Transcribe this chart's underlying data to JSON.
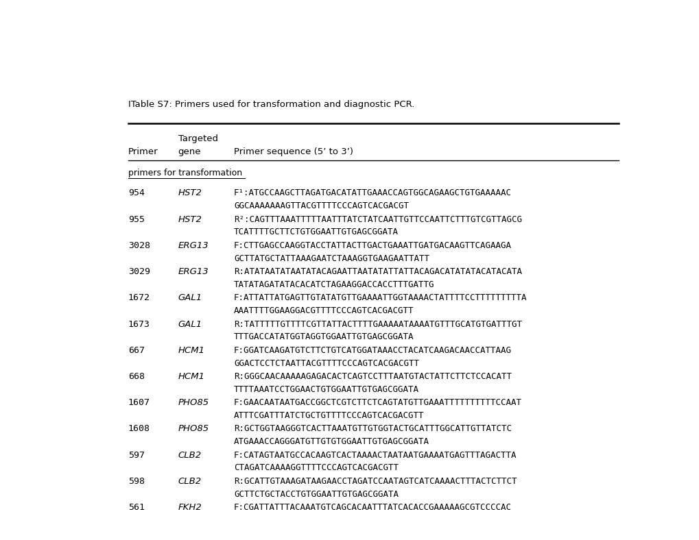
{
  "title": "ITable S7: Primers used for transformation and diagnostic PCR.",
  "background_color": "#ffffff",
  "section_label": "primers for transformation",
  "rows": [
    {
      "primer": "954",
      "gene": "HST2",
      "sequence_line1": "F¹:ATGCCAAGCTTAGATGACATATTGAAACCAGTGGCAGAAGCTGTGAAAAAC",
      "sequence_line2": "GGCAAAAAAAGTTACGTTTTCCCAGTCACGACGT"
    },
    {
      "primer": "955",
      "gene": "HST2",
      "sequence_line1": "R²:CAGTTTAAATTTTTAATTTATCTATCAATTGTTCCAATTCTTTGTCGTTAGCG",
      "sequence_line2": "TCATTTTGCTTCTGTGGAATTGTGAGCGGATA"
    },
    {
      "primer": "3028",
      "gene": "ERG13",
      "sequence_line1": "F:CTTGAGCCAAGGTACCTATTACTTGACTGAAATTGATGACAAGTTCAGAAGA",
      "sequence_line2": "GCTTATGCTATTAAAGAATCTAAAGGTGAAGAATTATT"
    },
    {
      "primer": "3029",
      "gene": "ERG13",
      "sequence_line1": "R:ATATAATATAATATACAGAATTAATATATTATTACAGACATATATACATACATA",
      "sequence_line2": "TATATAGATATACACATCTAGAAGGACCACCTTTGATTG"
    },
    {
      "primer": "1672",
      "gene": "GAL1",
      "sequence_line1": "F:ATTATTATGAGTTGTATATGTTGAAAATTGGTAAAACTATTTTCCTTTTTTTTTA",
      "sequence_line2": "AAATTTTGGAAGGACGTTTTCCCAGTCACGACGTT"
    },
    {
      "primer": "1673",
      "gene": "GAL1",
      "sequence_line1": "R:TATTTTTGTTTTCGTTATTACTTTTGAAAAATAAAATGTTTGCATGTGATTTGT",
      "sequence_line2": "TTTGACCATATGGTAGGTGGAATTGTGAGCGGATA"
    },
    {
      "primer": "667",
      "gene": "HCM1",
      "sequence_line1": "F:GGATCAAGATGTCTTCTGTCATGGATAAACCTACATCAAGACAACCATTAAG",
      "sequence_line2": "GGACTCCTCTAATTACGTTTTCCCAGTCACGACGTT"
    },
    {
      "primer": "668",
      "gene": "HCM1",
      "sequence_line1": "R:GGGCAACAAAAAGAGACACTCAGTCCTTTAATGTACTATTCTTCTCCACATT",
      "sequence_line2": "TTTTAAATCCTGGAACTGTGGAATTGTGAGCGGATA"
    },
    {
      "primer": "1607",
      "gene": "PHO85",
      "sequence_line1": "F:GAACAATAATGACCGGCTCGTCTTCTCAGTATGTTGAAATTTTTTTTTTCCAAT",
      "sequence_line2": "ATTTCGATTTATCTGCTGTTTTCCCAGTCACGACGTT"
    },
    {
      "primer": "1608",
      "gene": "PHO85",
      "sequence_line1": "R:GCTGGTAAGGGTCACTTAAATGTTGTGGTACTGCATTTGGCATTGTTATCTC",
      "sequence_line2": "ATGAAACCAGGGATGTTGTGTGGAATTGTGAGCGGATA"
    },
    {
      "primer": "597",
      "gene": "CLB2",
      "sequence_line1": "F:CATAGTAATGCCACAAGTCACTAAAACTAATAATGAAAATGAGTTTAGACTTA",
      "sequence_line2": "CTAGATCAAAAGGTTTTCCCAGTCACGACGTT"
    },
    {
      "primer": "598",
      "gene": "CLB2",
      "sequence_line1": "R:GCATTGTAAAGATAAGAACCTAGATCCAATAGTCATCAAAACTTTACTCTTCT",
      "sequence_line2": "GCTTCTGCTACCTGTGGAATTGTGAGCGGATA"
    },
    {
      "primer": "561",
      "gene": "FKH2",
      "sequence_line1": "F:CGATTATTTACAAATGTCAGCACAATTTATCACACCGAAAAAGCGTCCCCAC",
      "sequence_line2": ""
    }
  ]
}
